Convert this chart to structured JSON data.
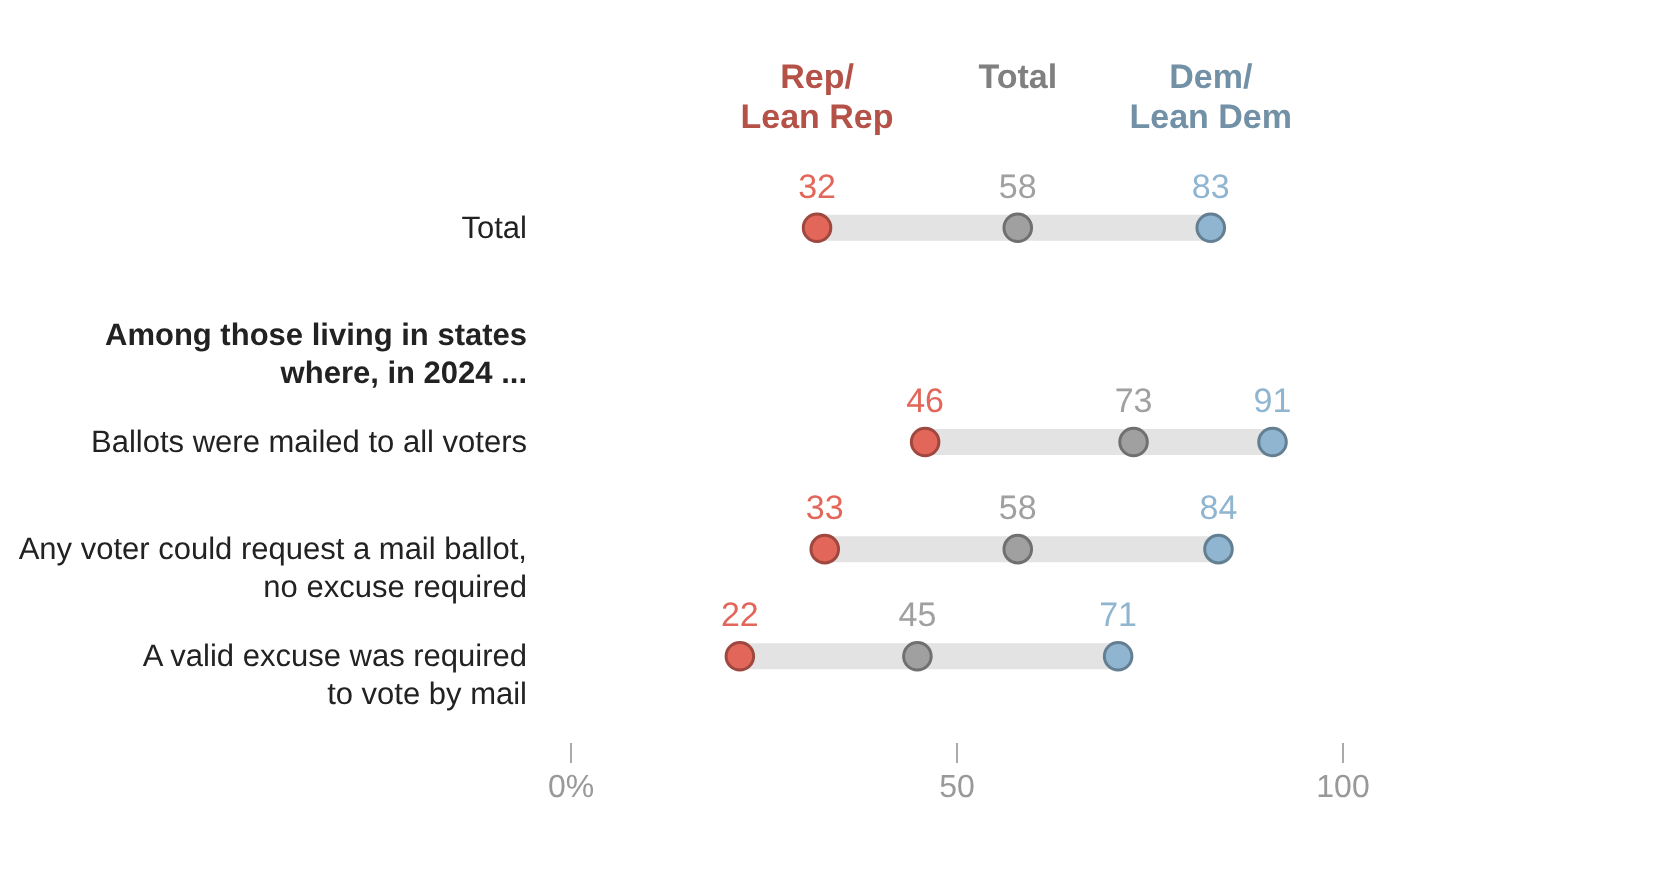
{
  "chart_data": {
    "type": "scatter",
    "orientation": "horizontal",
    "categories": [
      "Total",
      "Among those living in states where, in 2024 ...",
      "Ballots were mailed to all voters",
      "Any voter could request a mail ballot, no excuse required",
      "A valid excuse was required to vote by mail"
    ],
    "series": [
      {
        "name": "Rep/Lean Rep",
        "color": "#e2675a",
        "values": [
          32,
          null,
          46,
          33,
          22
        ]
      },
      {
        "name": "Total",
        "color": "#a0a0a0",
        "values": [
          58,
          null,
          73,
          58,
          45
        ]
      },
      {
        "name": "Dem/Lean Dem",
        "color": "#8fb5d0",
        "values": [
          83,
          null,
          91,
          84,
          71
        ]
      }
    ],
    "xlim": [
      0,
      100
    ],
    "xticks": [
      {
        "value": 0,
        "label": "0%"
      },
      50,
      100
    ],
    "data_labels": true,
    "legend": "top",
    "marker": "circle",
    "grid": false
  }
}
